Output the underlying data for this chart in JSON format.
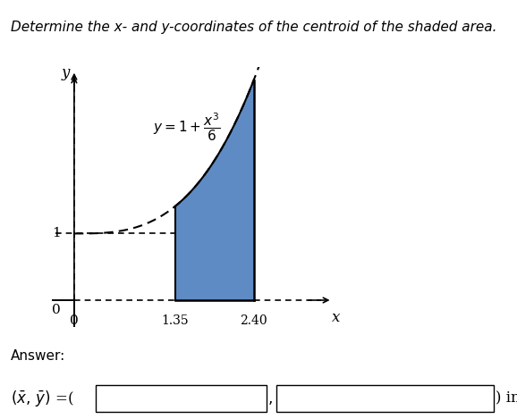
{
  "title": "Determine the x- and y-coordinates of the centroid of the shaded area.",
  "title_fontsize": 11,
  "x_start": 1.35,
  "x_end": 2.4,
  "shade_color": "#4d7fbe",
  "shade_alpha": 0.9,
  "dashed_color": "#666666",
  "answer_label": "Answer:",
  "xlim": [
    -0.3,
    3.5
  ],
  "ylim": [
    -0.4,
    3.5
  ],
  "background_color": "#ffffff",
  "curve_x_min": 0.0,
  "curve_x_max": 2.85
}
